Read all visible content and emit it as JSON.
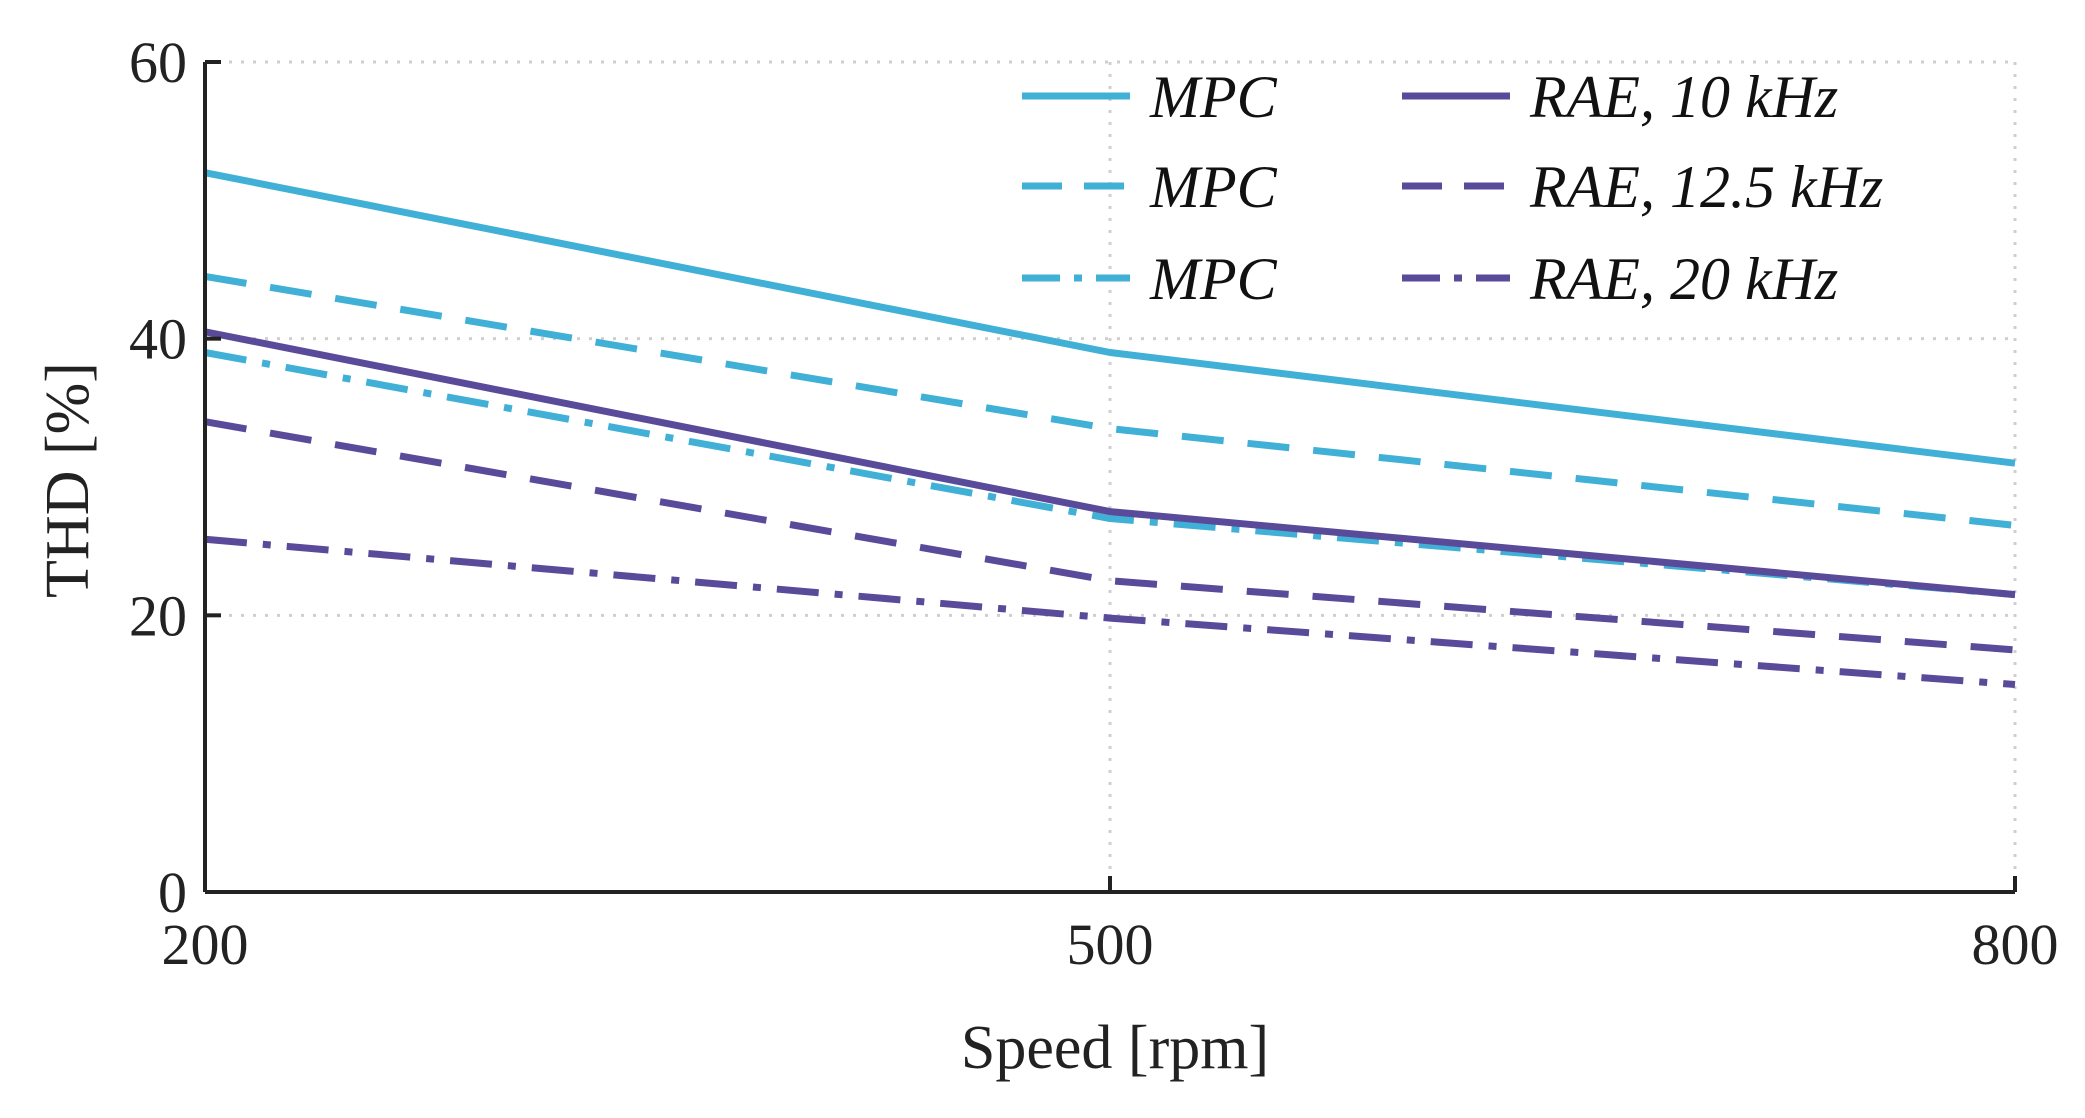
{
  "chart_data": {
    "type": "line",
    "title": "",
    "xlabel": "Speed [rpm]",
    "ylabel": "THD [%]",
    "x": [
      200,
      500,
      800
    ],
    "xlim": [
      200,
      800
    ],
    "ylim": [
      0,
      60
    ],
    "xticks": [
      "200",
      "500",
      "800"
    ],
    "yticks": [
      "0",
      "20",
      "40",
      "60"
    ],
    "grid": true,
    "legend_position": "top-right",
    "series": [
      {
        "name": "MPC",
        "color": "#41b0d6",
        "style": "solid",
        "values": [
          52,
          39,
          31
        ]
      },
      {
        "name": "MPC",
        "color": "#41b0d6",
        "style": "dashed",
        "values": [
          44.5,
          33.5,
          26.5
        ]
      },
      {
        "name": "MPC",
        "color": "#41b0d6",
        "style": "dashdot",
        "values": [
          39,
          27,
          21.5
        ]
      },
      {
        "name": "RAE, 10 kHz",
        "color": "#5a4a9a",
        "style": "solid",
        "values": [
          40.5,
          27.5,
          21.5
        ]
      },
      {
        "name": "RAE, 12.5 kHz",
        "color": "#5a4a9a",
        "style": "dashed",
        "values": [
          34,
          22.5,
          17.5
        ]
      },
      {
        "name": "RAE, 20 kHz",
        "color": "#5a4a9a",
        "style": "dashdot",
        "values": [
          25.5,
          19.8,
          15
        ]
      }
    ]
  }
}
